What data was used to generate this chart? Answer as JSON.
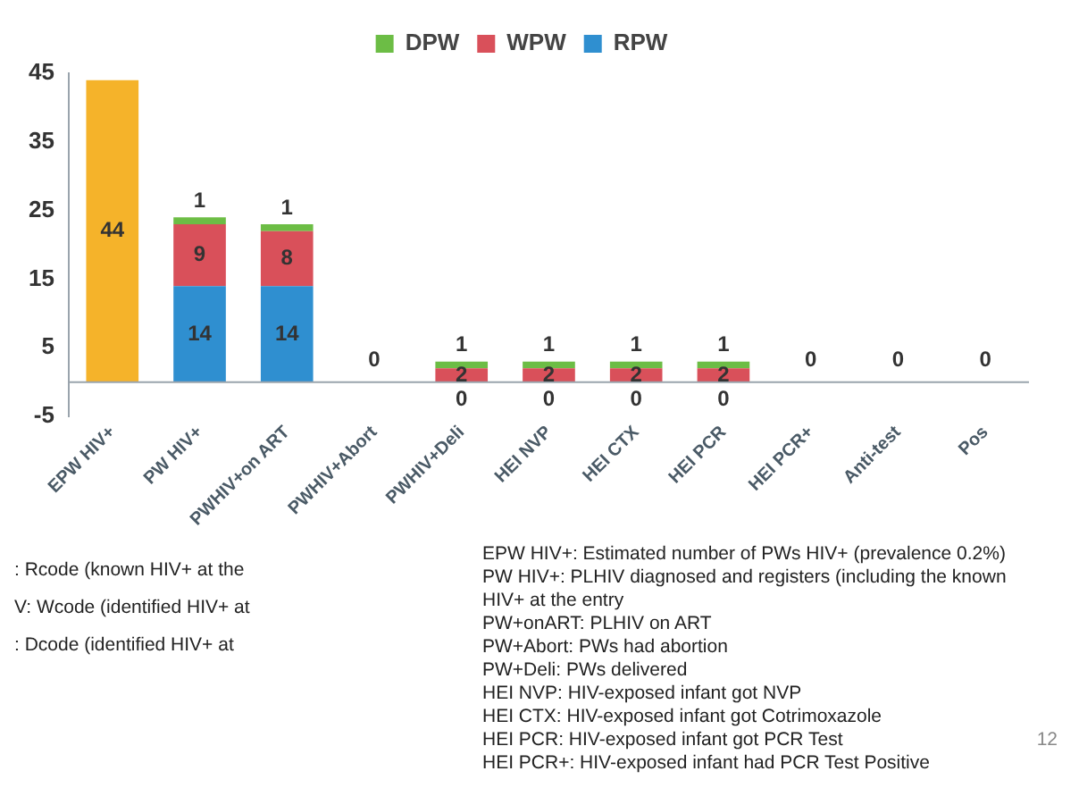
{
  "chart_data": {
    "type": "bar",
    "stacked": true,
    "legend": "top",
    "data_labels": true,
    "grid": false,
    "categories": [
      "EPW HIV+",
      "PW HIV+",
      "PWHIV+on ART",
      "PWHIV+Abort",
      "PWHIV+Deli",
      "HEI NVP",
      "HEI CTX",
      "HEI PCR",
      "HEI PCR+",
      "Anti-test",
      "Pos"
    ],
    "ylim": [
      -5,
      45
    ],
    "yticks": [
      -5,
      5,
      15,
      25,
      35,
      45
    ],
    "series": [
      {
        "color": "#f5b32a",
        "values": [
          44,
          null,
          null,
          0,
          null,
          null,
          null,
          null,
          null,
          0,
          0
        ]
      },
      {
        "name": "RPW",
        "color": "#2f8fd0",
        "values": [
          null,
          14,
          14,
          null,
          0,
          0,
          0,
          0,
          0,
          null,
          null
        ]
      },
      {
        "name": "WPW",
        "color": "#d9505a",
        "values": [
          null,
          9,
          8,
          null,
          2,
          2,
          2,
          2,
          null,
          null,
          null
        ]
      },
      {
        "name": "DPW",
        "color": "#6cbd45",
        "values": [
          null,
          1,
          1,
          null,
          1,
          1,
          1,
          1,
          null,
          null,
          null
        ]
      }
    ],
    "annotations": [
      ": Rcode (known HIV+ at the",
      "V: Wcode (identified HIV+ at",
      ": Dcode (identified HIV+ at",
      "EPW HIV+: Estimated number of PWs HIV+ (prevalence 0.2%)",
      "PW HIV+: PLHIV diagnosed and registers (including the known HIV+ at the entry",
      "PW+onART: PLHIV on ART",
      "PW+Abort: PWs had abortion",
      "PW+Deli: PWs delivered",
      "HEI NVP: HIV-exposed infant got NVP",
      "HEI CTX: HIV-exposed infant got Cotrimoxazole",
      "HEI PCR: HIV-exposed infant got PCR Test",
      "HEI PCR+: HIV-exposed infant had PCR Test Positive",
      "12"
    ]
  }
}
